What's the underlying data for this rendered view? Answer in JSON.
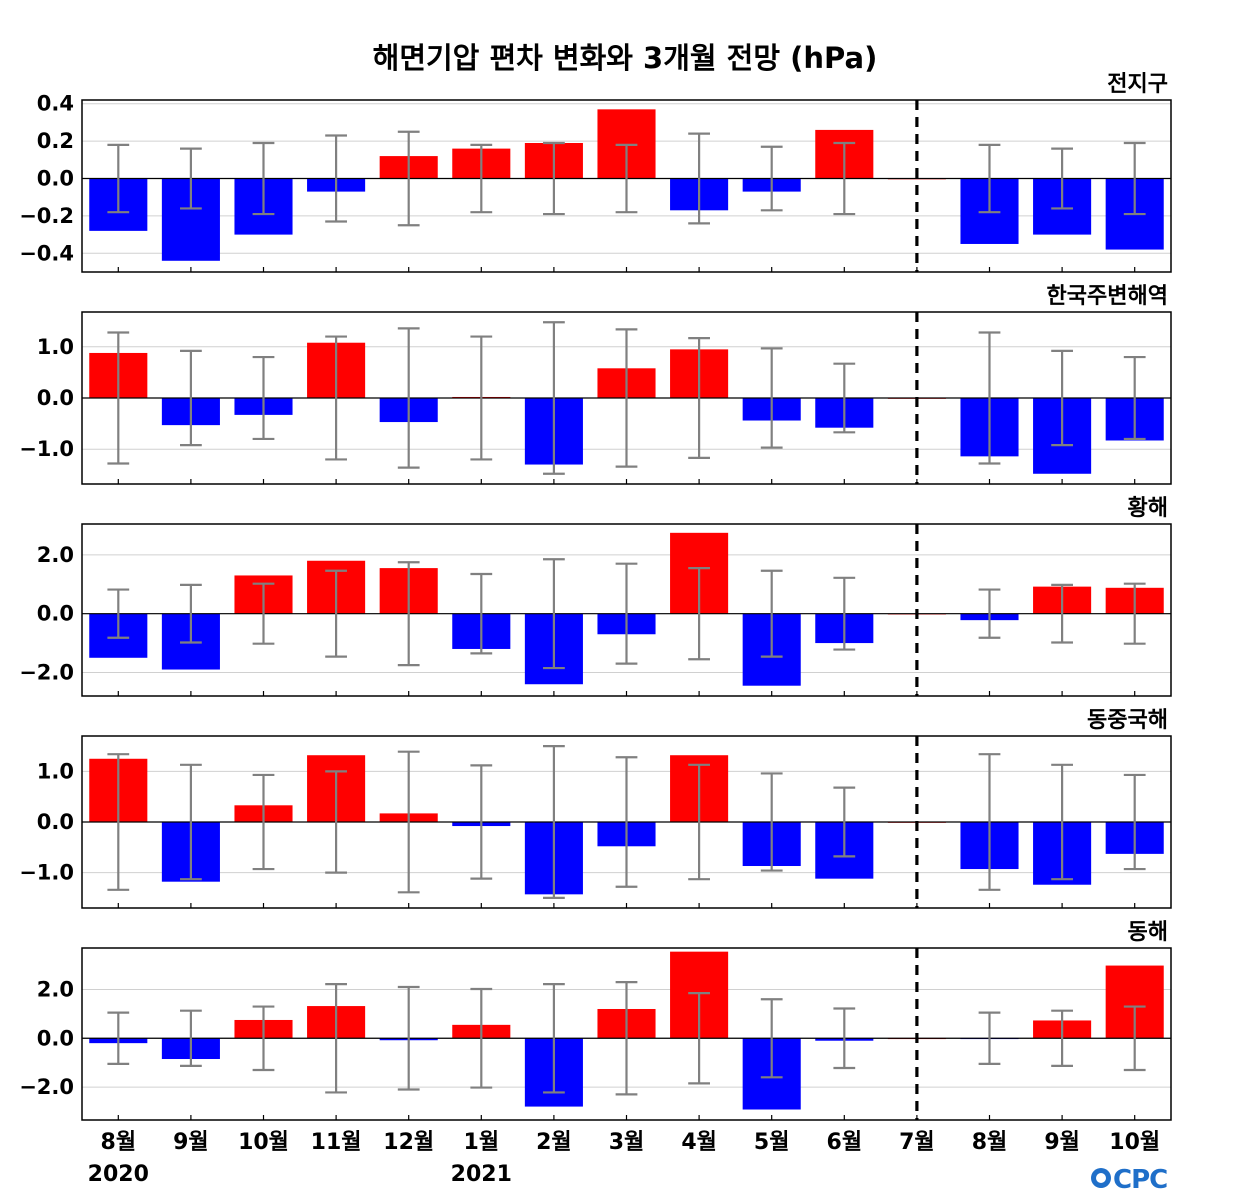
{
  "title": "해면기압 편차 변화와 3개월 전망 (hPa)",
  "logo": "CPC",
  "colors": {
    "positive": "#ff0000",
    "negative": "#0000ff",
    "errorbar": "#808080",
    "grid": "#d0d0d0",
    "forecast_divider": "#000000"
  },
  "chart_data": [
    {
      "type": "bar",
      "region": "전지구",
      "ylim": [
        -0.5,
        0.42
      ],
      "yticks": [
        0.4,
        0.2,
        0.0,
        -0.2,
        -0.4
      ],
      "ytick_labels": [
        "0.4",
        "0.2",
        "0.0",
        "−0.2",
        "−0.4"
      ],
      "categories": [
        "8월",
        "9월",
        "10월",
        "11월",
        "12월",
        "1월",
        "2월",
        "3월",
        "4월",
        "5월",
        "6월",
        "7월",
        "8월",
        "9월",
        "10월"
      ],
      "values": [
        -0.28,
        -0.44,
        -0.3,
        -0.07,
        0.12,
        0.16,
        0.19,
        0.37,
        -0.17,
        -0.07,
        0.26,
        0.0,
        -0.35,
        -0.3,
        -0.38
      ],
      "error": [
        0.18,
        0.16,
        0.19,
        0.23,
        0.25,
        0.18,
        0.19,
        0.18,
        0.24,
        0.17,
        0.19,
        0.0,
        0.18,
        0.16,
        0.19
      ],
      "grid": true
    },
    {
      "type": "bar",
      "region": "한국주변해역",
      "ylim": [
        -1.68,
        1.68
      ],
      "yticks": [
        1.0,
        0.0,
        -1.0
      ],
      "ytick_labels": [
        "1.0",
        "0.0",
        "−1.0"
      ],
      "categories": [
        "8월",
        "9월",
        "10월",
        "11월",
        "12월",
        "1월",
        "2월",
        "3월",
        "4월",
        "5월",
        "6월",
        "7월",
        "8월",
        "9월",
        "10월"
      ],
      "values": [
        0.88,
        -0.53,
        -0.33,
        1.08,
        -0.47,
        0.02,
        -1.3,
        0.58,
        0.95,
        -0.44,
        -0.58,
        0.0,
        -1.14,
        -1.48,
        -0.83
      ],
      "error": [
        1.28,
        0.92,
        0.8,
        1.2,
        1.36,
        1.2,
        1.48,
        1.34,
        1.17,
        0.97,
        0.67,
        0.0,
        1.28,
        0.92,
        0.8
      ],
      "grid": true
    },
    {
      "type": "bar",
      "region": "황해",
      "ylim": [
        -2.8,
        3.05
      ],
      "yticks": [
        2.0,
        0.0,
        -2.0
      ],
      "ytick_labels": [
        "2.0",
        "0.0",
        "−2.0"
      ],
      "categories": [
        "8월",
        "9월",
        "10월",
        "11월",
        "12월",
        "1월",
        "2월",
        "3월",
        "4월",
        "5월",
        "6월",
        "7월",
        "8월",
        "9월",
        "10월"
      ],
      "values": [
        -1.5,
        -1.9,
        1.3,
        1.8,
        1.55,
        -1.2,
        -2.4,
        -0.7,
        2.75,
        -2.45,
        -1.0,
        0.0,
        -0.22,
        0.92,
        0.88
      ],
      "error": [
        0.82,
        0.98,
        1.02,
        1.46,
        1.75,
        1.35,
        1.85,
        1.7,
        1.55,
        1.46,
        1.22,
        0.0,
        0.82,
        0.98,
        1.02
      ],
      "grid": true
    },
    {
      "type": "bar",
      "region": "동중국해",
      "ylim": [
        -1.7,
        1.7
      ],
      "yticks": [
        1.0,
        0.0,
        -1.0
      ],
      "ytick_labels": [
        "1.0",
        "0.0",
        "−1.0"
      ],
      "categories": [
        "8월",
        "9월",
        "10월",
        "11월",
        "12월",
        "1월",
        "2월",
        "3월",
        "4월",
        "5월",
        "6월",
        "7월",
        "8월",
        "9월",
        "10월"
      ],
      "values": [
        1.25,
        -1.18,
        0.33,
        1.32,
        0.17,
        -0.08,
        -1.43,
        -0.48,
        1.32,
        -0.87,
        -1.12,
        0.0,
        -0.93,
        -1.24,
        -0.63
      ],
      "error": [
        1.34,
        1.13,
        0.93,
        1.0,
        1.39,
        1.12,
        1.5,
        1.28,
        1.13,
        0.96,
        0.68,
        0.0,
        1.34,
        1.13,
        0.93
      ],
      "grid": true
    },
    {
      "type": "bar",
      "region": "동해",
      "ylim": [
        -3.35,
        3.7
      ],
      "yticks": [
        2.0,
        0.0,
        -2.0
      ],
      "ytick_labels": [
        "2.0",
        "0.0",
        "−2.0"
      ],
      "categories": [
        "8월",
        "9월",
        "10월",
        "11월",
        "12월",
        "1월",
        "2월",
        "3월",
        "4월",
        "5월",
        "6월",
        "7월",
        "8월",
        "9월",
        "10월"
      ],
      "values": [
        -0.2,
        -0.85,
        0.75,
        1.32,
        -0.08,
        0.55,
        -2.8,
        1.2,
        3.55,
        -2.92,
        -0.1,
        0.0,
        -0.02,
        0.73,
        2.98
      ],
      "error": [
        1.05,
        1.13,
        1.3,
        2.22,
        2.1,
        2.02,
        2.22,
        2.3,
        1.85,
        1.6,
        1.22,
        0.0,
        1.05,
        1.13,
        1.3
      ],
      "grid": true
    }
  ],
  "x_axis": {
    "labels": [
      "8월",
      "9월",
      "10월",
      "11월",
      "12월",
      "1월",
      "2월",
      "3월",
      "4월",
      "5월",
      "6월",
      "7월",
      "8월",
      "9월",
      "10월"
    ],
    "year_labels": [
      {
        "text": "2020",
        "index": 0
      },
      {
        "text": "2021",
        "index": 5
      }
    ],
    "forecast_divider_index": 11
  }
}
